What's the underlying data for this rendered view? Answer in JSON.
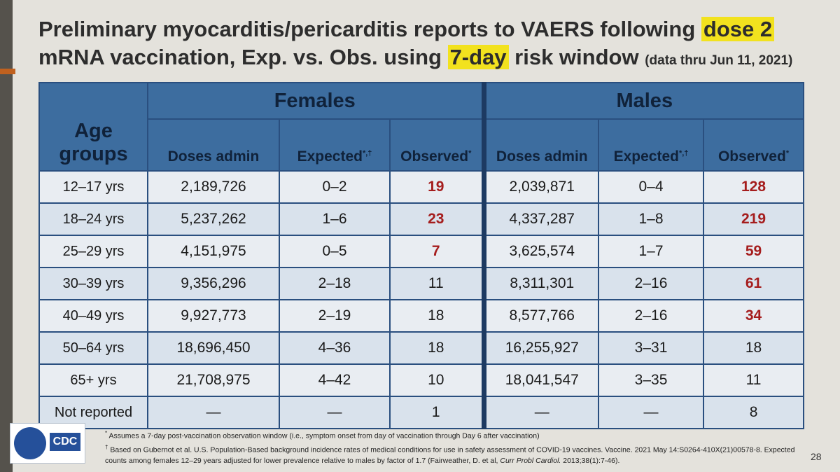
{
  "title": {
    "part1": "Preliminary myocarditis/pericarditis reports to VAERS following ",
    "hl1": "dose 2",
    "part2": "mRNA vaccination, Exp. vs. Obs. using ",
    "hl2": "7-day",
    "part3": " risk window ",
    "note": "(data thru Jun 11, 2021)"
  },
  "table": {
    "age_header": "Age groups",
    "group_female": "Females",
    "group_male": "Males",
    "col_doses": "Doses admin",
    "col_expected": "Expected",
    "col_expected_mark": "*,†",
    "col_observed": "Observed",
    "col_observed_mark": "*",
    "rows": [
      {
        "age": "12–17 yrs",
        "f_doses": "2,189,726",
        "f_exp": "0–2",
        "f_obs": "19",
        "m_doses": "2,039,871",
        "m_exp": "0–4",
        "m_obs": "128"
      },
      {
        "age": "18–24 yrs",
        "f_doses": "5,237,262",
        "f_exp": "1–6",
        "f_obs": "23",
        "m_doses": "4,337,287",
        "m_exp": "1–8",
        "m_obs": "219"
      },
      {
        "age": "25–29 yrs",
        "f_doses": "4,151,975",
        "f_exp": "0–5",
        "f_obs": "7",
        "m_doses": "3,625,574",
        "m_exp": "1–7",
        "m_obs": "59"
      },
      {
        "age": "30–39 yrs",
        "f_doses": "9,356,296",
        "f_exp": "2–18",
        "f_obs": "11",
        "m_doses": "8,311,301",
        "m_exp": "2–16",
        "m_obs": "61"
      },
      {
        "age": "40–49 yrs",
        "f_doses": "9,927,773",
        "f_exp": "2–19",
        "f_obs": "18",
        "m_doses": "8,577,766",
        "m_exp": "2–16",
        "m_obs": "34"
      },
      {
        "age": "50–64 yrs",
        "f_doses": "18,696,450",
        "f_exp": "4–36",
        "f_obs": "18",
        "m_doses": "16,255,927",
        "m_exp": "3–31",
        "m_obs": "18"
      },
      {
        "age": "65+ yrs",
        "f_doses": "21,708,975",
        "f_exp": "4–42",
        "f_obs": "10",
        "m_doses": "18,041,547",
        "m_exp": "3–35",
        "m_obs": "11"
      },
      {
        "age": "Not reported",
        "f_doses": "—",
        "f_exp": "—",
        "f_obs": "1",
        "m_doses": "—",
        "m_exp": "—",
        "m_obs": "8"
      }
    ]
  },
  "footnotes": {
    "mark1": "*",
    "note1": "Assumes a 7-day post-vaccination observation window (i.e., symptom onset from day of vaccination through Day 6 after vaccination)",
    "mark2": "†",
    "note2a": "Based on Gubernot et al. U.S. Population-Based background incidence rates of medical conditions for use in safety assessment of COVID-19 vaccines. Vaccine. 2021 May 14:S0264-410X(21)00578-8. Expected counts among females 12–29 years adjusted for lower prevalence relative to males by factor of 1.7 (Fairweather, D. et al, ",
    "note2_journal": "Curr Probl Cardiol.",
    "note2b": " 2013;38(1):7-46)."
  },
  "logo": {
    "text": "CDC"
  },
  "page_number": "28",
  "colors": {
    "header_blue": "#3d6d9f",
    "highlight": "#f2e21e",
    "red_value": "#a51d1d"
  }
}
